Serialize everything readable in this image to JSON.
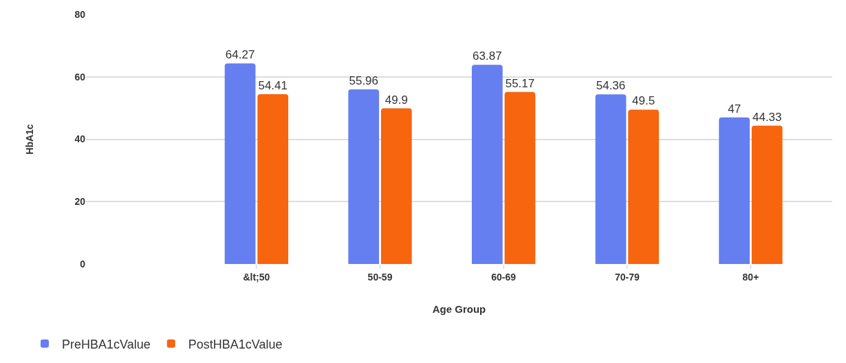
{
  "chart_data": {
    "type": "bar",
    "xlabel": "Age Group",
    "ylabel": "HbA1c",
    "categories": [
      "&lt;50",
      "50-59",
      "60-69",
      "70-79",
      "80+"
    ],
    "series": [
      {
        "name": "PreHBA1cValue",
        "color": "#657ff0",
        "values": [
          64.27,
          55.96,
          63.87,
          54.36,
          47
        ]
      },
      {
        "name": "PostHBA1cValue",
        "color": "#f7650f",
        "values": [
          54.41,
          49.9,
          55.17,
          49.5,
          44.33
        ]
      }
    ],
    "ylim": [
      0,
      80
    ],
    "yticks": [
      0,
      20,
      40,
      60,
      80
    ],
    "grid": "y",
    "data_labels": true,
    "legend": "bottom left"
  }
}
